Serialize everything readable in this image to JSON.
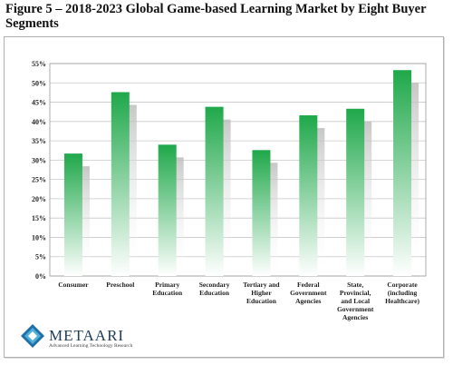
{
  "title": "Figure 5 – 2018-2023 Global Game-based Learning Market by Eight Buyer Segments",
  "logo": {
    "name": "METAARI",
    "tagline": "Advanced Learning Technology Research"
  },
  "colors": {
    "bar_top": "#1fa84a",
    "bar_bottom": "#ffffff",
    "shadow": "#bdbdbd",
    "grid": "#c8c8c8"
  },
  "chart_data": {
    "type": "bar",
    "title": "Figure 5 – 2018-2023 Global Game-based Learning Market by Eight Buyer Segments",
    "xlabel": "",
    "ylabel": "",
    "ylim": [
      0,
      55
    ],
    "yticks": [
      "0%",
      "5%",
      "10%",
      "15%",
      "20%",
      "25%",
      "30%",
      "35%",
      "40%",
      "45%",
      "50%",
      "55%"
    ],
    "grid": true,
    "categories": [
      [
        "Consumer"
      ],
      [
        "Preschool"
      ],
      [
        "Primary",
        "Education"
      ],
      [
        "Secondary",
        "Education"
      ],
      [
        "Tertiary and",
        "Higher",
        "Education"
      ],
      [
        "Federal",
        "Government",
        "Agencies"
      ],
      [
        "State,",
        "Provincial,",
        "and Local",
        "Government",
        "Agencies"
      ],
      [
        "Corporate",
        "(including",
        "Healthcare)"
      ]
    ],
    "values": [
      31.7,
      47.6,
      34.0,
      43.8,
      32.6,
      41.6,
      43.3,
      53.3
    ]
  }
}
